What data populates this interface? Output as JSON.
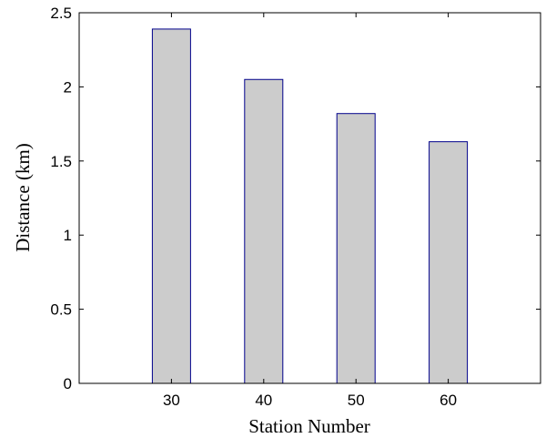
{
  "chart_data": {
    "type": "bar",
    "categories": [
      "30",
      "40",
      "50",
      "60"
    ],
    "values": [
      2.39,
      2.05,
      1.82,
      1.63
    ],
    "title": "",
    "xlabel": "Station Number",
    "ylabel": "Distance (km)",
    "xlim": [
      20,
      70
    ],
    "ylim": [
      0,
      2.5
    ],
    "yticks": [
      "0",
      "0.5",
      "1",
      "1.5",
      "2",
      "2.5"
    ],
    "grid": false,
    "bar_fill": "#cccccc",
    "bar_edge": "#00008b",
    "axes_color": "#000000"
  }
}
